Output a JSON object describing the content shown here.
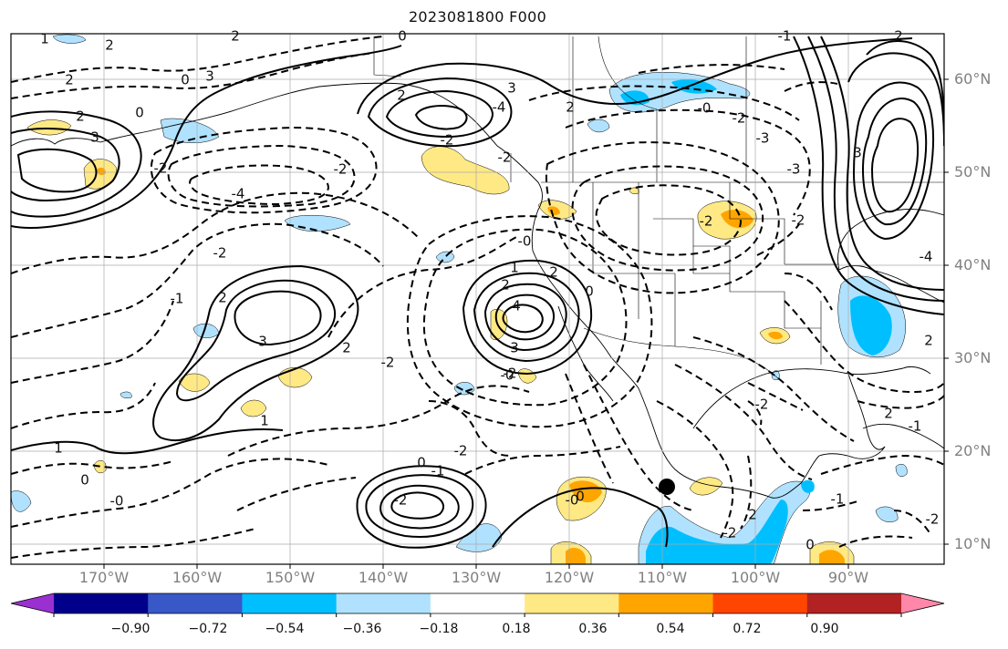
{
  "title": "2023081800 F000",
  "lat_labels": [
    "60°N",
    "50°N",
    "40°N",
    "30°N",
    "20°N",
    "10°N"
  ],
  "lon_labels": [
    "170°W",
    "160°W",
    "150°W",
    "140°W",
    "130°W",
    "120°W",
    "110°W",
    "100°W",
    "90°W"
  ],
  "colorbar": {
    "ticks": [
      "−0.90",
      "−0.72",
      "−0.54",
      "−0.36",
      "−0.18",
      "0.18",
      "0.36",
      "0.54",
      "0.72",
      "0.90"
    ],
    "colors": [
      "#9b30d0",
      "#00008b",
      "#3858c8",
      "#00bfff",
      "#b0e2ff",
      "#ffffff",
      "#ffe985",
      "#ffa500",
      "#ff4500",
      "#b22222",
      "#ff88aa"
    ]
  },
  "contour_labels": [
    "1",
    "2",
    "2",
    "0",
    "2",
    "3",
    "0",
    "2",
    "3",
    "2",
    "-2",
    "-2",
    "-4",
    "3",
    "-4",
    "-2",
    "-2",
    "2",
    "0",
    "-1",
    "-0",
    "2",
    "-2",
    "-3",
    "3",
    "-2",
    "-3",
    "-4",
    "2",
    "1",
    "-2",
    "-0",
    "3",
    "2",
    "4",
    "2",
    "3",
    "-1",
    "2",
    "-2",
    "-2",
    "-0",
    "-2",
    "0",
    "1",
    "-2",
    "0",
    "-0",
    "-2",
    "0",
    "-1",
    "-0",
    "-2",
    "2",
    "-1",
    "2",
    "1",
    "0",
    "-2",
    "2",
    "-1",
    "0",
    "-2"
  ],
  "colors": {
    "frame": "#000000",
    "grid": "#aaaaaa",
    "axis_text": "#808080"
  }
}
